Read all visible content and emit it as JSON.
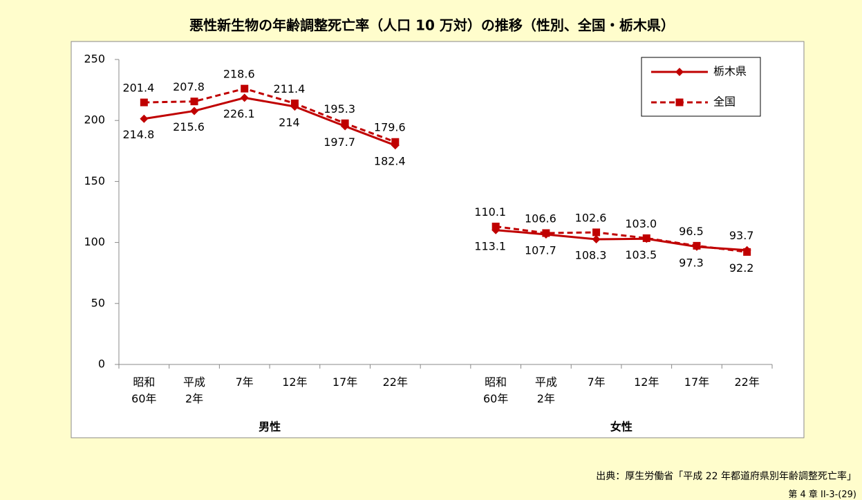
{
  "chart_data": {
    "type": "line",
    "title": "悪性新生物の年齢調整死亡率（人口 10 万対）の推移（性別、全国・栃木県）",
    "categories": [
      "昭和\n60年",
      "平成\n2年",
      "7年",
      "12年",
      "17年",
      "22年",
      null,
      "昭和\n60年",
      "平成\n2年",
      "7年",
      "12年",
      "17年",
      "22年"
    ],
    "group_labels": [
      "男性",
      "女性"
    ],
    "series": [
      {
        "name": "栃木県",
        "color": "#c00000",
        "marker": "diamond",
        "dashed": false,
        "values": [
          201.4,
          207.8,
          218.6,
          211.4,
          195.3,
          179.6,
          null,
          110.1,
          106.6,
          102.6,
          103.0,
          96.5,
          93.7
        ],
        "value_labels": [
          "201.4",
          "207.8",
          "218.6",
          "211.4",
          "195.3",
          "179.6",
          null,
          "110.1",
          "106.6",
          "102.6",
          "103.0",
          "96.5",
          "93.7"
        ]
      },
      {
        "name": "全国",
        "color": "#c00000",
        "marker": "square",
        "dashed": true,
        "values": [
          214.8,
          215.6,
          226.1,
          214,
          197.7,
          182.4,
          null,
          113.1,
          107.7,
          108.3,
          103.5,
          97.3,
          92.2
        ]
      }
    ],
    "ylim": [
      0,
      250
    ],
    "yticks": [
      0,
      50,
      100,
      150,
      200,
      250
    ],
    "grid": false,
    "legend": "upper right"
  },
  "source": "出典：厚生労働省「平成 22 年都道府県別年齢調整死亡率」",
  "page_number": "第 4 章 II-3-(29)"
}
